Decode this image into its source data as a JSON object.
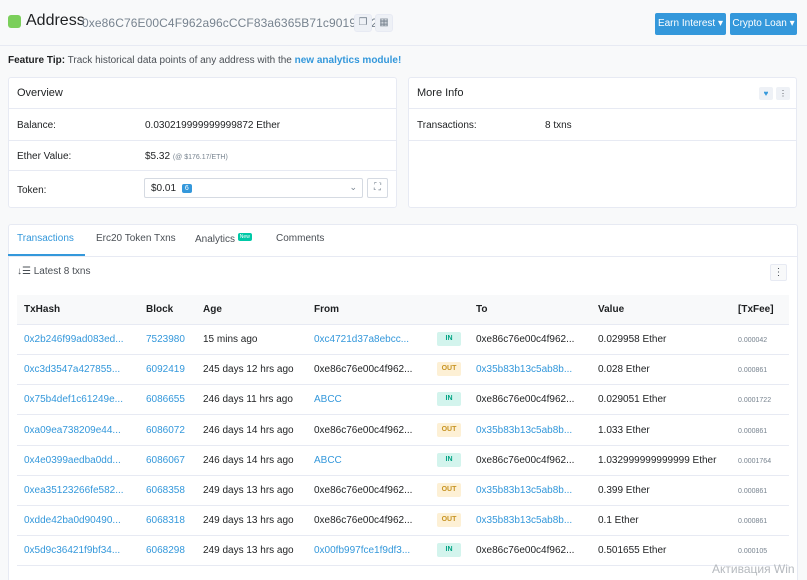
{
  "header": {
    "title": "Address",
    "address": "0xe86C76E00C4F962a96cCCF83a6365B71c9019E92",
    "earn_label": "Earn Interest",
    "loan_label": "Crypto Loan"
  },
  "feature_tip": {
    "label": "Feature Tip:",
    "text": "Track historical data points of any address with the",
    "link": "new analytics module!"
  },
  "overview": {
    "title": "Overview",
    "balance_label": "Balance:",
    "balance_value": "0.030219999999999872 Ether",
    "ether_value_label": "Ether Value:",
    "ether_value": "$5.32",
    "ether_rate": "(@ $176.17/ETH)",
    "token_label": "Token:",
    "token_value": "$0.01",
    "token_count": "6"
  },
  "more_info": {
    "title": "More Info",
    "transactions_label": "Transactions:",
    "transactions_value": "8 txns"
  },
  "tabs": [
    {
      "label": "Transactions"
    },
    {
      "label": "Erc20 Token Txns"
    },
    {
      "label": "Analytics",
      "badge": "New"
    },
    {
      "label": "Comments"
    }
  ],
  "latest_label": "Latest 8 txns",
  "table": {
    "headers": [
      "TxHash",
      "Block",
      "Age",
      "From",
      "To",
      "Value",
      "[TxFee]"
    ],
    "rows": [
      {
        "hash": "0x2b246f99ad083ed...",
        "block": "7523980",
        "age": "15 mins ago",
        "from": "0xc4721d37a8ebcc...",
        "from_link": true,
        "dir": "IN",
        "to": "0xe86c76e00c4f962...",
        "to_link": false,
        "value": "0.029958 Ether",
        "fee": "0.000042"
      },
      {
        "hash": "0xc3d3547a427855...",
        "block": "6092419",
        "age": "245 days 12 hrs ago",
        "from": "0xe86c76e00c4f962...",
        "from_link": false,
        "dir": "OUT",
        "to": "0x35b83b13c5ab8b...",
        "to_link": true,
        "value": "0.028 Ether",
        "fee": "0.000861"
      },
      {
        "hash": "0x75b4def1c61249e...",
        "block": "6086655",
        "age": "246 days 11 hrs ago",
        "from": "ABCC",
        "from_link": true,
        "dir": "IN",
        "to": "0xe86c76e00c4f962...",
        "to_link": false,
        "value": "0.029051 Ether",
        "fee": "0.0001722"
      },
      {
        "hash": "0xa09ea738209e44...",
        "block": "6086072",
        "age": "246 days 14 hrs ago",
        "from": "0xe86c76e00c4f962...",
        "from_link": false,
        "dir": "OUT",
        "to": "0x35b83b13c5ab8b...",
        "to_link": true,
        "value": "1.033 Ether",
        "fee": "0.000861"
      },
      {
        "hash": "0x4e0399aedba0dd...",
        "block": "6086067",
        "age": "246 days 14 hrs ago",
        "from": "ABCC",
        "from_link": true,
        "dir": "IN",
        "to": "0xe86c76e00c4f962...",
        "to_link": false,
        "value": "1.032999999999999 Ether",
        "fee": "0.0001764"
      },
      {
        "hash": "0xea35123266fe582...",
        "block": "6068358",
        "age": "249 days 13 hrs ago",
        "from": "0xe86c76e00c4f962...",
        "from_link": false,
        "dir": "OUT",
        "to": "0x35b83b13c5ab8b...",
        "to_link": true,
        "value": "0.399 Ether",
        "fee": "0.000861"
      },
      {
        "hash": "0xdde42ba0d90490...",
        "block": "6068318",
        "age": "249 days 13 hrs ago",
        "from": "0xe86c76e00c4f962...",
        "from_link": false,
        "dir": "OUT",
        "to": "0x35b83b13c5ab8b...",
        "to_link": true,
        "value": "0.1 Ether",
        "fee": "0.000861"
      },
      {
        "hash": "0x5d9c36421f9bf34...",
        "block": "6068298",
        "age": "249 days 13 hrs ago",
        "from": "0x00fb997fce1f9df3...",
        "from_link": true,
        "dir": "IN",
        "to": "0xe86c76e00c4f962...",
        "to_link": false,
        "value": "0.501655 Ether",
        "fee": "0.000105"
      }
    ]
  },
  "watermark": "Активация Win",
  "colors": {
    "accent": "#3498db",
    "in": "#00a383",
    "out": "#c79423",
    "avatar": "#7bcf5b"
  },
  "icons": [
    "copy-icon",
    "qr-code-icon",
    "chevron-down-icon",
    "expand-icon",
    "heart-icon",
    "more-vertical-icon",
    "sort-icon"
  ]
}
